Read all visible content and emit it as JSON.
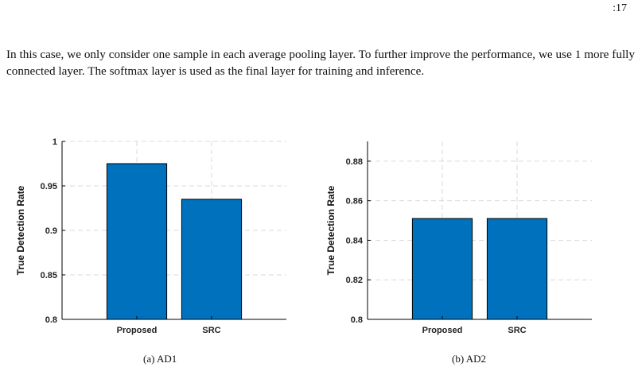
{
  "header": {
    "page_number": ":17"
  },
  "body_text": "In this case, we only consider one sample in each average pooling layer. To further improve the performance, we use 1 more fully connected layer. The softmax layer is used as the final layer for training and inference.",
  "colors": {
    "bar": "#0072BD",
    "grid": "#d9d9d9",
    "axis": "#000000"
  },
  "chart_data": [
    {
      "type": "bar",
      "categories": [
        "Proposed",
        "SRC"
      ],
      "values": [
        0.975,
        0.935
      ],
      "ylabel": "True Detection Rate",
      "ylim": [
        0.8,
        1.0
      ],
      "yticks": [
        0.8,
        0.85,
        0.9,
        0.95,
        1
      ],
      "ytick_labels": [
        "0.8",
        "0.85",
        "0.9",
        "0.95",
        "1"
      ],
      "grid": true,
      "caption": "(a) AD1"
    },
    {
      "type": "bar",
      "categories": [
        "Proposed",
        "SRC"
      ],
      "values": [
        0.851,
        0.851
      ],
      "ylabel": "True Detection Rate",
      "ylim": [
        0.8,
        0.89
      ],
      "yticks": [
        0.8,
        0.82,
        0.84,
        0.86,
        0.88
      ],
      "ytick_labels": [
        "0.8",
        "0.82",
        "0.84",
        "0.86",
        "0.88"
      ],
      "grid": true,
      "caption": "(b) AD2"
    }
  ]
}
